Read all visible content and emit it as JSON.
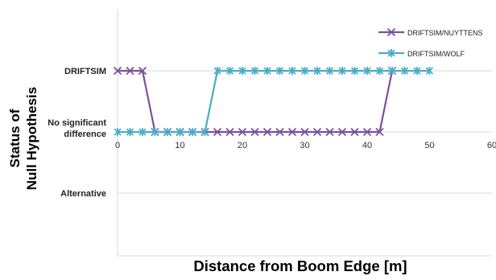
{
  "chart_data": {
    "type": "line",
    "title": "",
    "xlabel": "Distance from Boom Edge [m]",
    "ylabel": "Status of Null Hypothesis",
    "xlim": [
      0,
      60
    ],
    "xticks": [
      0,
      10,
      20,
      30,
      40,
      50,
      60
    ],
    "y_categories": [
      "Alternative",
      "No significant difference",
      "DRIFTSIM"
    ],
    "y_category_labels": {
      "DRIFTSIM": "DRIFTSIM",
      "No significant difference": [
        "No significant",
        "difference"
      ],
      "Alternative": "Alternative"
    },
    "grid": true,
    "legend_position": "top-right",
    "series": [
      {
        "name": "DRIFTSIM/NUYTTENS",
        "color": "#7B519D",
        "marker": "x",
        "x": [
          0,
          2,
          4,
          6,
          8,
          10,
          12,
          14,
          16,
          18,
          20,
          22,
          24,
          26,
          28,
          30,
          32,
          34,
          36,
          38,
          40,
          42,
          44
        ],
        "values": [
          "DRIFTSIM",
          "DRIFTSIM",
          "DRIFTSIM",
          "No significant difference",
          "No significant difference",
          "No significant difference",
          "No significant difference",
          "No significant difference",
          "No significant difference",
          "No significant difference",
          "No significant difference",
          "No significant difference",
          "No significant difference",
          "No significant difference",
          "No significant difference",
          "No significant difference",
          "No significant difference",
          "No significant difference",
          "No significant difference",
          "No significant difference",
          "No significant difference",
          "No significant difference",
          "DRIFTSIM"
        ]
      },
      {
        "name": "DRIFTSIM/WOLF",
        "color": "#4BACC6",
        "marker": "asterisk",
        "x": [
          0,
          2,
          4,
          6,
          8,
          10,
          12,
          14,
          16,
          18,
          20,
          22,
          24,
          26,
          28,
          30,
          32,
          34,
          36,
          38,
          40,
          42,
          44,
          46,
          48,
          50
        ],
        "values": [
          "No significant difference",
          "No significant difference",
          "No significant difference",
          "No significant difference",
          "No significant difference",
          "No significant difference",
          "No significant difference",
          "No significant difference",
          "DRIFTSIM",
          "DRIFTSIM",
          "DRIFTSIM",
          "DRIFTSIM",
          "DRIFTSIM",
          "DRIFTSIM",
          "DRIFTSIM",
          "DRIFTSIM",
          "DRIFTSIM",
          "DRIFTSIM",
          "DRIFTSIM",
          "DRIFTSIM",
          "DRIFTSIM",
          "DRIFTSIM",
          "DRIFTSIM",
          "DRIFTSIM",
          "DRIFTSIM",
          "DRIFTSIM"
        ]
      }
    ]
  }
}
